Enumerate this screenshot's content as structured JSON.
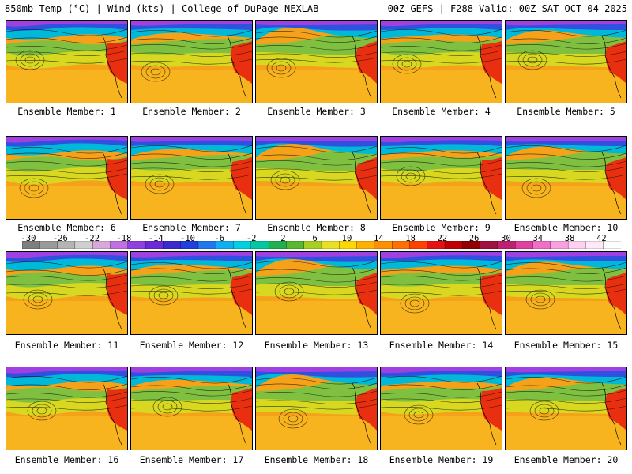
{
  "header": {
    "left": "850mb Temp (°C) | Wind (kts) | College of DuPage NEXLAB",
    "right": "00Z GEFS | F288 Valid: 00Z SAT OCT 04 2025"
  },
  "colorbar": {
    "labels": [
      "-30",
      "-26",
      "-22",
      "-18",
      "-14",
      "-10",
      "-6",
      "-2",
      "2",
      "6",
      "10",
      "14",
      "18",
      "22",
      "26",
      "30",
      "34",
      "38",
      "42"
    ],
    "colors": [
      "#7f7f7f",
      "#9a9a9a",
      "#b4b4b4",
      "#cfcfcf",
      "#d8a8d8",
      "#c070e0",
      "#9040e0",
      "#6a2ad8",
      "#3a2ad0",
      "#2040e0",
      "#2078f0",
      "#10b0f0",
      "#00d0e0",
      "#00c8a0",
      "#20b050",
      "#58b830",
      "#a8d020",
      "#e8e020",
      "#ffd800",
      "#ffb000",
      "#ff9000",
      "#ff7000",
      "#ff4000",
      "#e81010",
      "#c00000",
      "#900000",
      "#a01040",
      "#c02070",
      "#e040a0",
      "#f070c8",
      "#f8a0e0",
      "#ffd0f0",
      "#ffe8f8",
      "#ffffff"
    ]
  },
  "members": [
    {
      "label": "Ensemble Member: 1"
    },
    {
      "label": "Ensemble Member: 2"
    },
    {
      "label": "Ensemble Member: 3"
    },
    {
      "label": "Ensemble Member: 4"
    },
    {
      "label": "Ensemble Member: 5"
    },
    {
      "label": "Ensemble Member: 6"
    },
    {
      "label": "Ensemble Member: 7"
    },
    {
      "label": "Ensemble Member: 8"
    },
    {
      "label": "Ensemble Member: 9"
    },
    {
      "label": "Ensemble Member: 10"
    },
    {
      "label": "Ensemble Member: 11"
    },
    {
      "label": "Ensemble Member: 12"
    },
    {
      "label": "Ensemble Member: 13"
    },
    {
      "label": "Ensemble Member: 14"
    },
    {
      "label": "Ensemble Member: 15"
    },
    {
      "label": "Ensemble Member: 16"
    },
    {
      "label": "Ensemble Member: 17"
    },
    {
      "label": "Ensemble Member: 18"
    },
    {
      "label": "Ensemble Member: 19"
    },
    {
      "label": "Ensemble Member: 20"
    }
  ]
}
